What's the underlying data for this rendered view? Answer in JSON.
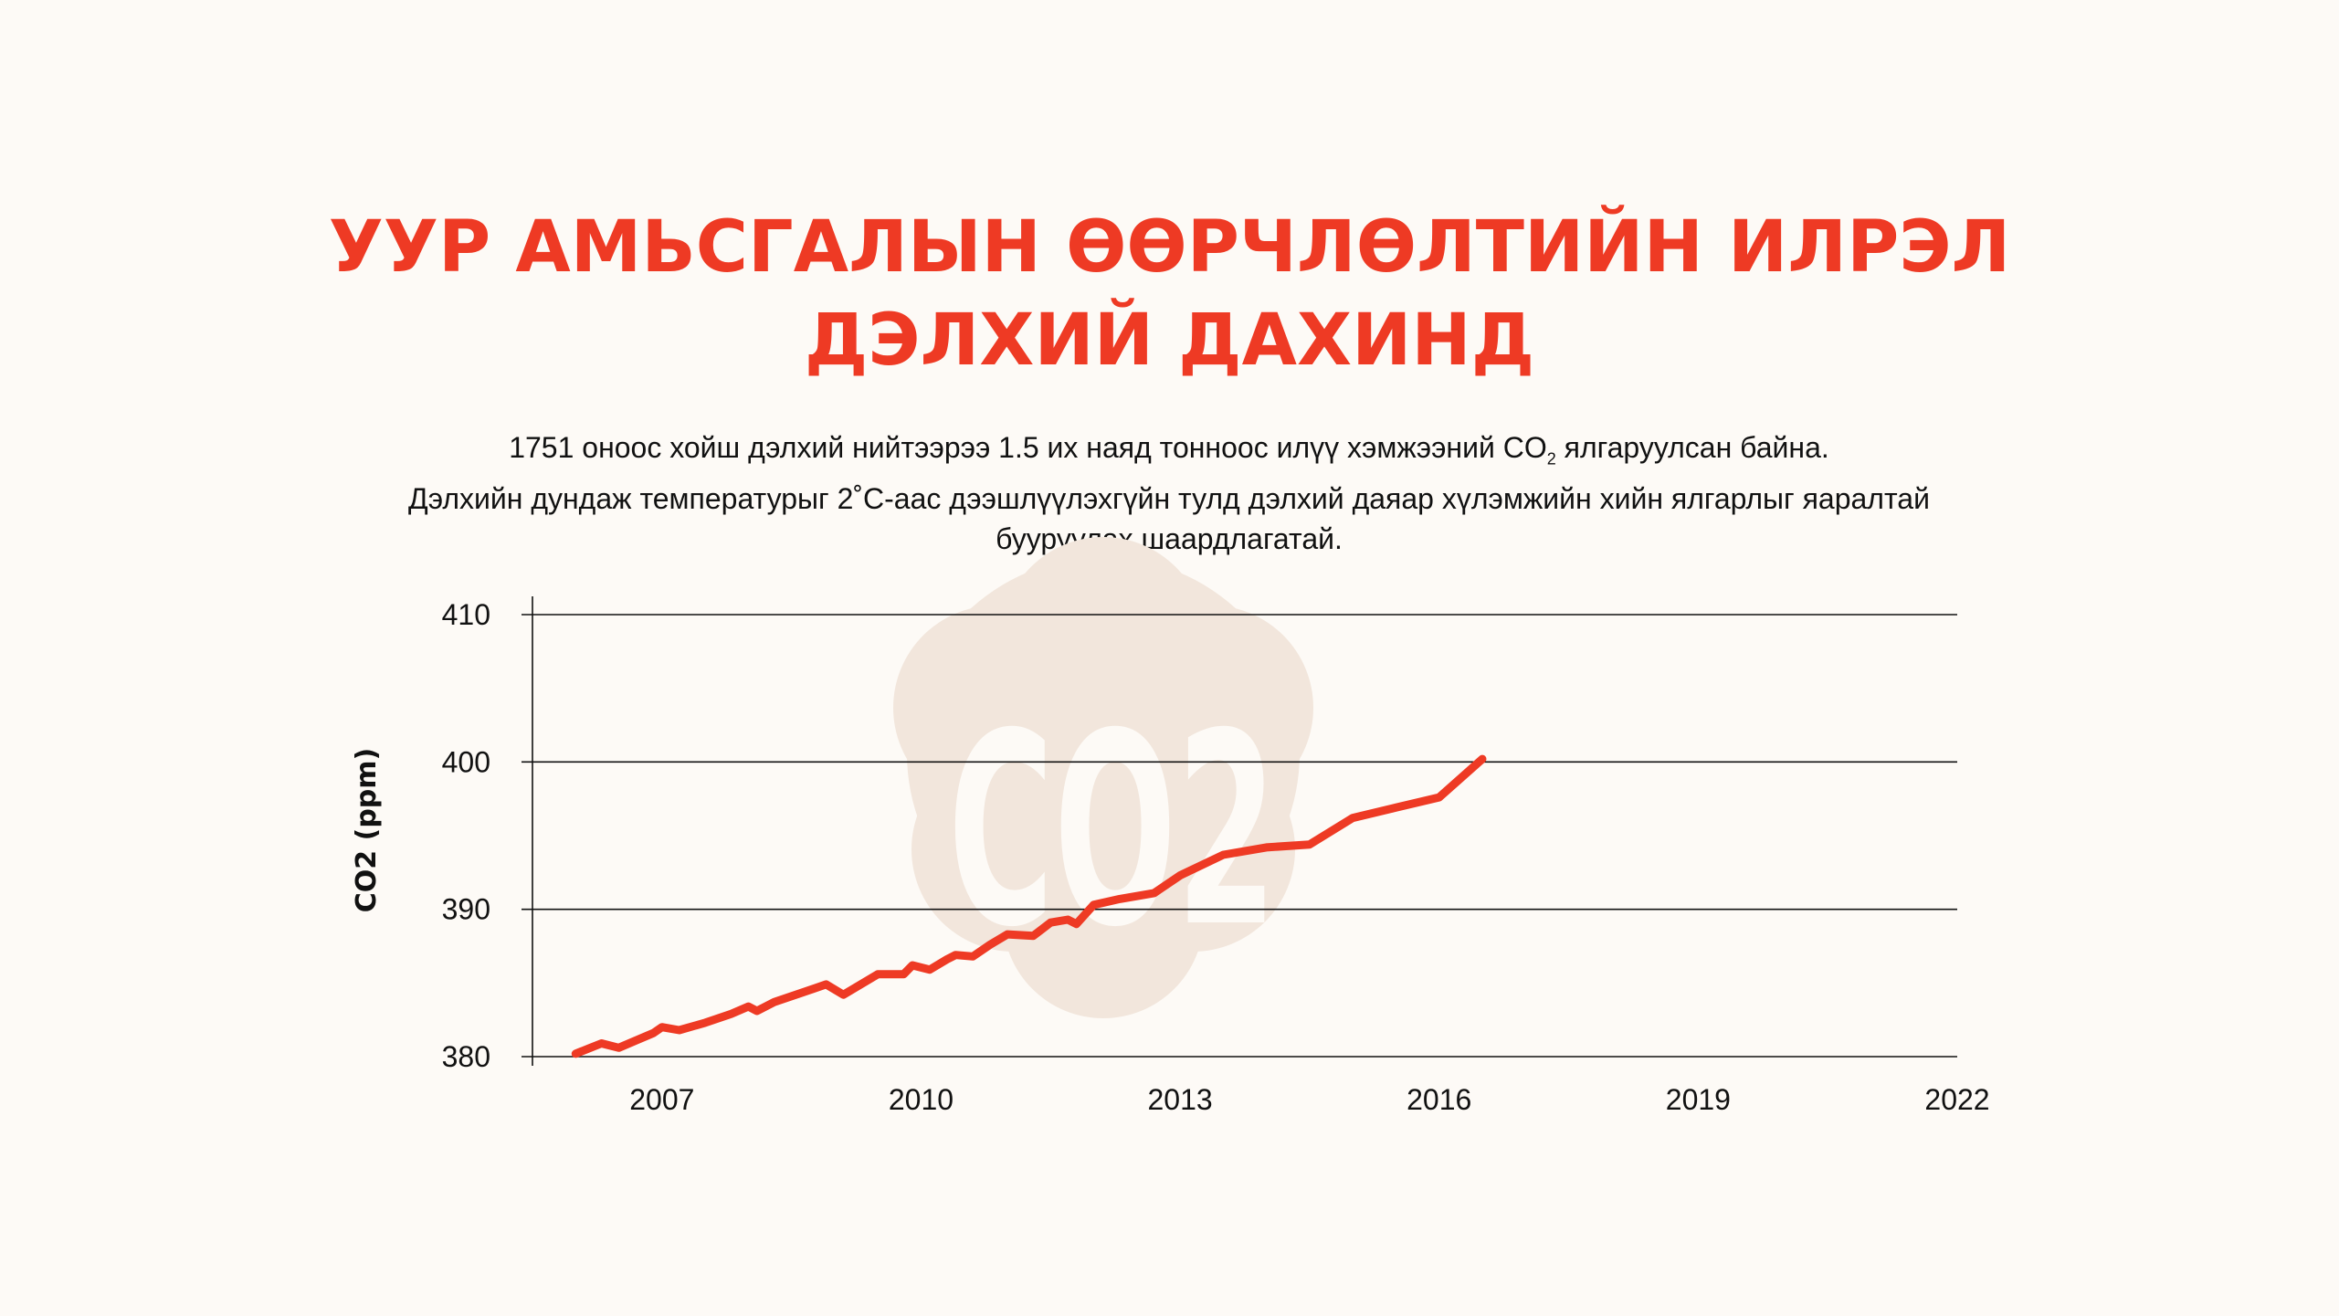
{
  "title": {
    "line1": "УУР АМЬСГАЛЫН ӨӨРЧЛӨЛТИЙН ИЛРЭЛ",
    "line2": "ДЭЛХИЙ ДАХИНД"
  },
  "subtitle": {
    "line1_before": "1751 оноос хойш дэлхий нийтээрээ 1.5 их наяд тонноос илүү хэмжээний CO",
    "line1_sub": "2",
    "line1_after": " ялгаруулсан байна.",
    "line2": "Дэлхийн дундаж температурыг 2˚C-аас дээшлүүлэхгүйн тулд дэлхий даяар хүлэмжийн хийн ялгарлыг яаралтай",
    "line3": "бууруулах шаардлагатай."
  },
  "badge": {
    "text": "CO2",
    "color": "#f2e6dc",
    "icon": "cloud-co2-icon"
  },
  "colors": {
    "accent": "#ee3a24",
    "background": "#fdfaf6",
    "text": "#111111"
  },
  "chart_data": {
    "type": "line",
    "ylabel": "CO2 (ppm)",
    "xlabel": "",
    "xlim": [
      2005.5,
      2022
    ],
    "ylim": [
      380,
      410
    ],
    "x_ticks": [
      2007,
      2010,
      2013,
      2016,
      2019,
      2022
    ],
    "y_ticks": [
      380,
      390,
      400,
      410
    ],
    "grid": "horizontal",
    "series": [
      {
        "color": "#ee3a24",
        "x": [
          2006.0,
          2006.3,
          2006.5,
          2006.9,
          2007.0,
          2007.2,
          2007.5,
          2007.8,
          2008.0,
          2008.1,
          2008.3,
          2008.6,
          2008.9,
          2009.1,
          2009.5,
          2009.8,
          2009.9,
          2010.1,
          2010.3,
          2010.4,
          2010.6,
          2010.8,
          2011.0,
          2011.3,
          2011.5,
          2011.7,
          2011.8,
          2012.0,
          2012.3,
          2012.7,
          2013.0,
          2013.5,
          2014.0,
          2014.5,
          2015.0,
          2015.5,
          2016.0,
          2016.5
        ],
        "values": [
          380.2,
          380.9,
          380.6,
          381.6,
          382.0,
          381.8,
          382.3,
          382.9,
          383.4,
          383.1,
          383.7,
          384.3,
          384.9,
          384.2,
          385.6,
          385.6,
          386.2,
          385.9,
          386.6,
          386.9,
          386.8,
          387.6,
          388.3,
          388.2,
          389.1,
          389.3,
          389.0,
          390.3,
          390.7,
          391.1,
          392.3,
          393.7,
          394.2,
          394.4,
          396.2,
          396.9,
          397.6,
          400.2
        ]
      }
    ]
  }
}
